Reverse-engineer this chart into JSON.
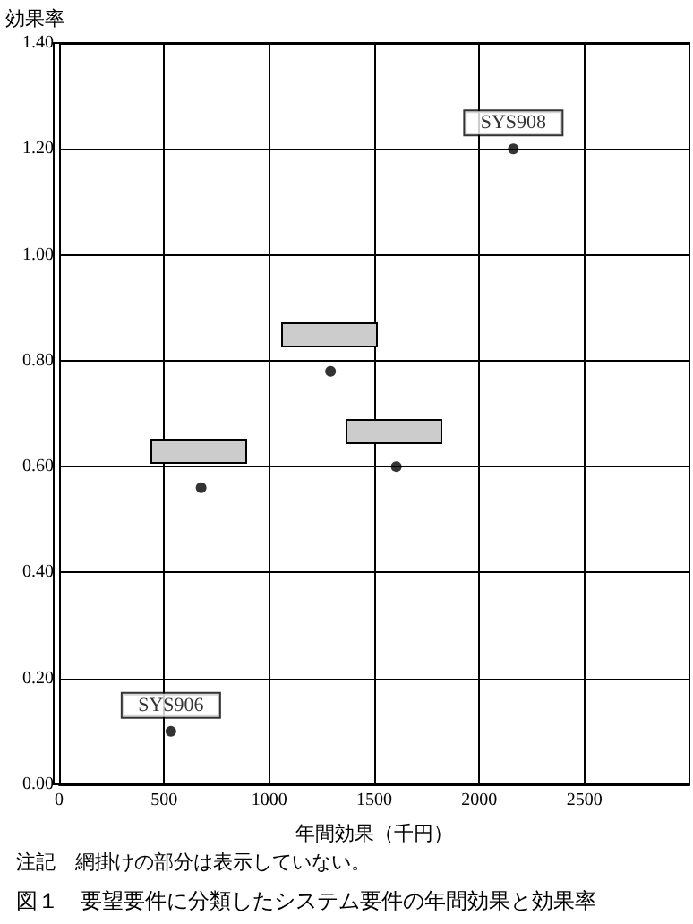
{
  "chart_data": {
    "type": "scatter",
    "title": "図１　要望要件に分類したシステム要件の年間効果と効果率",
    "xlabel": "年間効果（千円）",
    "ylabel": "効果率",
    "x": [
      532,
      676,
      1292,
      1605,
      2162
    ],
    "series": [
      {
        "color": "#000000",
        "values": [
          0.1,
          0.56,
          0.78,
          0.6,
          1.2
        ]
      }
    ],
    "xlim": [
      0,
      3000
    ],
    "xticks": [
      0,
      500,
      1000,
      1500,
      2000,
      2500
    ],
    "ylim": [
      0,
      1.4
    ],
    "yticks": [
      {
        "value": 0,
        "label": "0.00"
      },
      {
        "value": 0.2,
        "label": "0.20"
      },
      {
        "value": 0.4,
        "label": "0.40"
      },
      {
        "value": 0.6,
        "label": "0.60"
      },
      {
        "value": 0.8,
        "label": "0.80"
      },
      {
        "value": 1.0,
        "label": "1.00"
      },
      {
        "value": 1.2,
        "label": "1.20"
      },
      {
        "value": 1.4,
        "label": "1.40"
      }
    ],
    "grid": true,
    "marker": "circle",
    "annotations": [
      {
        "text": "SYS906",
        "x": 532,
        "y": 0.1
      },
      {
        "text": "SYS908",
        "x": 2162,
        "y": 1.2
      },
      "注記　網掛けの部分は表示していない。"
    ]
  }
}
